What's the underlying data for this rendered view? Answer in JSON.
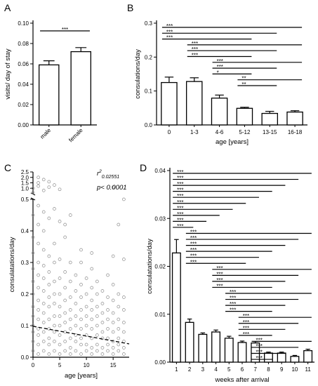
{
  "chart_data": [
    {
      "panel": "A",
      "type": "bar",
      "categories": [
        "male",
        "female"
      ],
      "values": [
        0.059,
        0.072
      ],
      "errors": [
        0.004,
        0.004
      ],
      "ylabel": "visits/ day of stay",
      "yticks": [
        "0.00",
        "0.02",
        "0.04",
        "0.06",
        "0.08",
        "0.10"
      ],
      "ylim": [
        0,
        0.1
      ],
      "significance": [
        {
          "from": 0,
          "to": 1,
          "label": "***"
        }
      ]
    },
    {
      "panel": "B",
      "type": "bar",
      "categories": [
        "0",
        "1-3",
        "4-6",
        "5-12",
        "13-15",
        "16-18"
      ],
      "values": [
        0.125,
        0.128,
        0.079,
        0.049,
        0.034,
        0.038
      ],
      "errors": [
        0.016,
        0.011,
        0.009,
        0.003,
        0.006,
        0.004
      ],
      "xlabel": "age [years]",
      "ylabel": "consulations/day",
      "yticks": [
        "0.0",
        "0.1",
        "0.2",
        "0.3"
      ],
      "ylim": [
        0,
        0.3
      ],
      "significance": [
        {
          "from": 0,
          "to": 5,
          "label": "***"
        },
        {
          "from": 0,
          "to": 4,
          "label": "***"
        },
        {
          "from": 0,
          "to": 3,
          "label": "***"
        },
        {
          "from": 1,
          "to": 5,
          "label": "***"
        },
        {
          "from": 1,
          "to": 4,
          "label": "***"
        },
        {
          "from": 1,
          "to": 3,
          "label": "***"
        },
        {
          "from": 2,
          "to": 5,
          "label": "***"
        },
        {
          "from": 2,
          "to": 4,
          "label": "***"
        },
        {
          "from": 2,
          "to": 3,
          "label": "*"
        },
        {
          "from": 3,
          "to": 5,
          "label": "**"
        },
        {
          "from": 3,
          "to": 4,
          "label": "**"
        }
      ]
    },
    {
      "panel": "C",
      "type": "scatter",
      "xlabel": "age [years]",
      "ylabel": "consulatations/day",
      "xticks": [
        "0",
        "5",
        "10",
        "15"
      ],
      "xlim": [
        0,
        18
      ],
      "yticks_lower": [
        "0.0",
        "0.1",
        "0.2",
        "0.3",
        "0.4",
        "0.5"
      ],
      "yticks_upper": [
        "1.0",
        "1.5",
        "2.0",
        "2.5"
      ],
      "ylim_lower": [
        0,
        0.5
      ],
      "ylim_upper": [
        0.5,
        2.5
      ],
      "annotation_r2": "r",
      "annotation_r2_sup": "2",
      "annotation_r2_sub": "0.02551",
      "annotation_p": "p< 0.0001",
      "regression": {
        "intercept": 0.098,
        "slope": -0.0031
      },
      "points": [
        [
          0,
          0.02
        ],
        [
          0,
          0.05
        ],
        [
          0,
          0.08
        ],
        [
          0,
          0.1
        ],
        [
          0,
          0.13
        ],
        [
          0,
          0.16
        ],
        [
          0,
          0.2
        ],
        [
          0,
          0.24
        ],
        [
          0,
          0.28
        ],
        [
          0,
          0.33
        ],
        [
          0,
          0.38
        ],
        [
          0,
          0.45
        ],
        [
          0,
          0.6
        ],
        [
          0,
          1.0
        ],
        [
          1,
          0.01
        ],
        [
          1,
          0.04
        ],
        [
          1,
          0.07
        ],
        [
          1,
          0.09
        ],
        [
          1,
          0.12
        ],
        [
          1,
          0.15
        ],
        [
          1,
          0.18
        ],
        [
          1,
          0.22
        ],
        [
          1,
          0.26
        ],
        [
          1,
          0.3
        ],
        [
          1,
          0.36
        ],
        [
          1,
          0.42
        ],
        [
          1,
          0.48
        ],
        [
          1,
          1.2
        ],
        [
          1,
          1.5
        ],
        [
          1,
          2.0
        ],
        [
          2,
          0.02
        ],
        [
          2,
          0.05
        ],
        [
          2,
          0.08
        ],
        [
          2,
          0.11
        ],
        [
          2,
          0.14
        ],
        [
          2,
          0.17
        ],
        [
          2,
          0.21
        ],
        [
          2,
          0.25
        ],
        [
          2,
          0.29
        ],
        [
          2,
          0.34
        ],
        [
          2,
          0.4
        ],
        [
          2,
          0.46
        ],
        [
          2,
          0.8
        ],
        [
          2,
          1.8
        ],
        [
          3,
          0.01
        ],
        [
          3,
          0.04
        ],
        [
          3,
          0.06
        ],
        [
          3,
          0.09
        ],
        [
          3,
          0.12
        ],
        [
          3,
          0.16
        ],
        [
          3,
          0.19
        ],
        [
          3,
          0.23
        ],
        [
          3,
          0.27
        ],
        [
          3,
          0.32
        ],
        [
          3,
          0.44
        ],
        [
          3,
          1.1
        ],
        [
          3,
          1.6
        ],
        [
          4,
          0.02
        ],
        [
          4,
          0.05
        ],
        [
          4,
          0.08
        ],
        [
          4,
          0.1
        ],
        [
          4,
          0.13
        ],
        [
          4,
          0.17
        ],
        [
          4,
          0.2
        ],
        [
          4,
          0.24
        ],
        [
          4,
          0.3
        ],
        [
          4,
          0.36
        ],
        [
          4,
          0.47
        ],
        [
          4,
          1.3
        ],
        [
          5,
          0.01
        ],
        [
          5,
          0.04
        ],
        [
          5,
          0.07
        ],
        [
          5,
          0.1
        ],
        [
          5,
          0.13
        ],
        [
          5,
          0.16
        ],
        [
          5,
          0.2
        ],
        [
          5,
          0.25
        ],
        [
          5,
          0.31
        ],
        [
          5,
          0.43
        ],
        [
          5,
          0.9
        ],
        [
          6,
          0.02
        ],
        [
          6,
          0.05
        ],
        [
          6,
          0.08
        ],
        [
          6,
          0.11
        ],
        [
          6,
          0.14
        ],
        [
          6,
          0.18
        ],
        [
          6,
          0.22
        ],
        [
          6,
          0.27
        ],
        [
          6,
          0.38
        ],
        [
          6,
          0.42
        ],
        [
          7,
          0.01
        ],
        [
          7,
          0.03
        ],
        [
          7,
          0.06
        ],
        [
          7,
          0.09
        ],
        [
          7,
          0.12
        ],
        [
          7,
          0.15
        ],
        [
          7,
          0.19
        ],
        [
          7,
          0.24
        ],
        [
          7,
          0.3
        ],
        [
          7,
          0.45
        ],
        [
          8,
          0.02
        ],
        [
          8,
          0.05
        ],
        [
          8,
          0.07
        ],
        [
          8,
          0.1
        ],
        [
          8,
          0.13
        ],
        [
          8,
          0.17
        ],
        [
          8,
          0.21
        ],
        [
          8,
          0.26
        ],
        [
          9,
          0.01
        ],
        [
          9,
          0.04
        ],
        [
          9,
          0.06
        ],
        [
          9,
          0.09
        ],
        [
          9,
          0.12
        ],
        [
          9,
          0.15
        ],
        [
          9,
          0.19
        ],
        [
          9,
          0.23
        ],
        [
          9,
          0.3
        ],
        [
          9,
          0.34
        ],
        [
          10,
          0.02
        ],
        [
          10,
          0.04
        ],
        [
          10,
          0.07
        ],
        [
          10,
          0.1
        ],
        [
          10,
          0.13
        ],
        [
          10,
          0.16
        ],
        [
          10,
          0.2
        ],
        [
          10,
          0.25
        ],
        [
          11,
          0.01
        ],
        [
          11,
          0.03
        ],
        [
          11,
          0.06
        ],
        [
          11,
          0.09
        ],
        [
          11,
          0.12
        ],
        [
          11,
          0.15
        ],
        [
          11,
          0.18
        ],
        [
          11,
          0.22
        ],
        [
          11,
          0.28
        ],
        [
          11,
          0.33
        ],
        [
          12,
          0.02
        ],
        [
          12,
          0.04
        ],
        [
          12,
          0.07
        ],
        [
          12,
          0.1
        ],
        [
          12,
          0.13
        ],
        [
          12,
          0.16
        ],
        [
          12,
          0.2
        ],
        [
          12,
          0.24
        ],
        [
          13,
          0.01
        ],
        [
          13,
          0.03
        ],
        [
          13,
          0.06
        ],
        [
          13,
          0.08
        ],
        [
          13,
          0.11
        ],
        [
          13,
          0.14
        ],
        [
          13,
          0.17
        ],
        [
          13,
          0.21
        ],
        [
          14,
          0.02
        ],
        [
          14,
          0.04
        ],
        [
          14,
          0.06
        ],
        [
          14,
          0.09
        ],
        [
          14,
          0.12
        ],
        [
          14,
          0.15
        ],
        [
          14,
          0.19
        ],
        [
          14,
          0.26
        ],
        [
          15,
          0.01
        ],
        [
          15,
          0.03
        ],
        [
          15,
          0.05
        ],
        [
          15,
          0.08
        ],
        [
          15,
          0.11
        ],
        [
          15,
          0.14
        ],
        [
          15,
          0.18
        ],
        [
          15,
          0.23
        ],
        [
          15,
          0.32
        ],
        [
          15,
          1.1
        ],
        [
          16,
          0.02
        ],
        [
          16,
          0.04
        ],
        [
          16,
          0.06
        ],
        [
          16,
          0.09
        ],
        [
          16,
          0.12
        ],
        [
          16,
          0.16
        ],
        [
          16,
          0.2
        ],
        [
          16,
          0.42
        ],
        [
          17,
          0.01
        ],
        [
          17,
          0.03
        ],
        [
          17,
          0.05
        ],
        [
          17,
          0.08
        ],
        [
          17,
          0.11
        ],
        [
          17,
          0.15
        ],
        [
          17,
          0.19
        ],
        [
          17,
          0.31
        ],
        [
          17,
          0.5
        ]
      ]
    },
    {
      "panel": "D",
      "type": "bar",
      "categories": [
        "1",
        "2",
        "3",
        "4",
        "5",
        "6",
        "7",
        "8",
        "9",
        "10",
        "11"
      ],
      "values": [
        0.0228,
        0.0083,
        0.0058,
        0.0063,
        0.005,
        0.0041,
        0.004,
        0.0019,
        0.0019,
        0.0012,
        0.0024
      ],
      "errors": [
        0.0028,
        0.0007,
        0.0003,
        0.0004,
        0.0004,
        0.0003,
        0.0003,
        0.0002,
        0.0002,
        0.0002,
        0.0003
      ],
      "xlabel": "weeks after arrival",
      "ylabel": "consulatations/day",
      "yticks": [
        "0.00",
        "0.01",
        "0.02",
        "0.03",
        "0.04"
      ],
      "ylim": [
        0,
        0.04
      ],
      "significance": [
        {
          "from": 0,
          "to": 10,
          "label": "***"
        },
        {
          "from": 0,
          "to": 9,
          "label": "***"
        },
        {
          "from": 0,
          "to": 8,
          "label": "***"
        },
        {
          "from": 0,
          "to": 7,
          "label": "***"
        },
        {
          "from": 0,
          "to": 6,
          "label": "***"
        },
        {
          "from": 0,
          "to": 5,
          "label": "***"
        },
        {
          "from": 0,
          "to": 4,
          "label": "***"
        },
        {
          "from": 0,
          "to": 3,
          "label": "***"
        },
        {
          "from": 0,
          "to": 2,
          "label": "***"
        },
        {
          "from": 0,
          "to": 1,
          "label": "***"
        },
        {
          "from": 1,
          "to": 10,
          "label": "***"
        },
        {
          "from": 1,
          "to": 9,
          "label": "***"
        },
        {
          "from": 1,
          "to": 8,
          "label": "***"
        },
        {
          "from": 1,
          "to": 7,
          "label": "***"
        },
        {
          "from": 1,
          "to": 6,
          "label": "***"
        },
        {
          "from": 1,
          "to": 5,
          "label": "***"
        },
        {
          "from": 3,
          "to": 10,
          "label": "***"
        },
        {
          "from": 3,
          "to": 9,
          "label": "***"
        },
        {
          "from": 3,
          "to": 8,
          "label": "***"
        },
        {
          "from": 3,
          "to": 7,
          "label": "***"
        },
        {
          "from": 4,
          "to": 10,
          "label": "***"
        },
        {
          "from": 4,
          "to": 9,
          "label": "***"
        },
        {
          "from": 4,
          "to": 8,
          "label": "***"
        },
        {
          "from": 4,
          "to": 7,
          "label": "***"
        },
        {
          "from": 5,
          "to": 10,
          "label": "***"
        },
        {
          "from": 5,
          "to": 9,
          "label": "***"
        },
        {
          "from": 5,
          "to": 8,
          "label": "***"
        },
        {
          "from": 5,
          "to": 7,
          "label": "***"
        },
        {
          "from": 6,
          "to": 10,
          "label": "***"
        },
        {
          "from": 6,
          "to": 9,
          "label": "***"
        },
        {
          "from": 6,
          "to": 8,
          "label": "***"
        },
        {
          "from": 6,
          "to": 7,
          "label": "***"
        }
      ]
    }
  ]
}
